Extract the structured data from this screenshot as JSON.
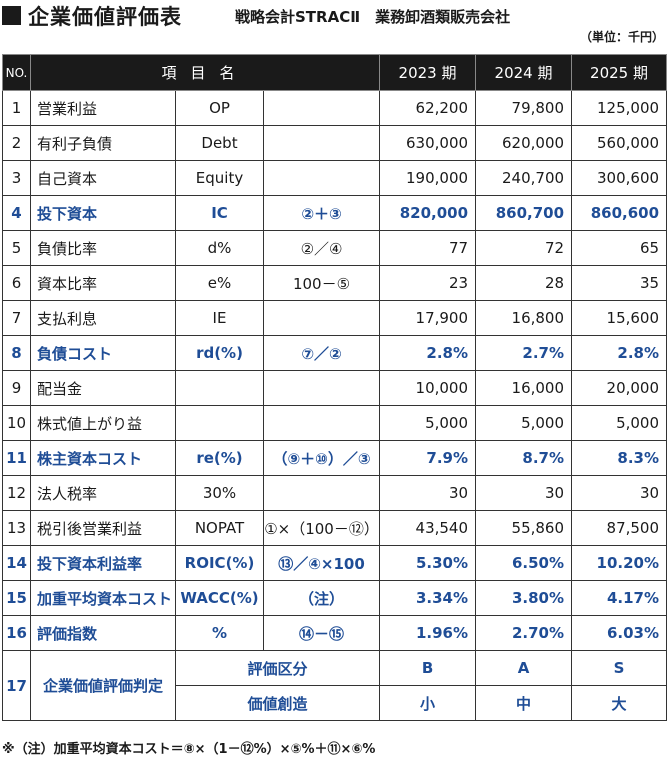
{
  "header": {
    "title": "企業価値評価表",
    "company": "戦略会計STRACⅡ　業務卸酒類販売会社",
    "unit": "（単位：千円）"
  },
  "table": {
    "headers": {
      "no": "NO.",
      "item": "項目名",
      "years": [
        "2023 期",
        "2024 期",
        "2025 期"
      ]
    },
    "rows": [
      {
        "no": "1",
        "name": "営業利益",
        "abbr": "OP",
        "calc": "",
        "v": [
          "62,200",
          "79,800",
          "125,000"
        ],
        "hl": false
      },
      {
        "no": "2",
        "name": "有利子負債",
        "abbr": "Debt",
        "calc": "",
        "v": [
          "630,000",
          "620,000",
          "560,000"
        ],
        "hl": false
      },
      {
        "no": "3",
        "name": "自己資本",
        "abbr": "Equity",
        "calc": "",
        "v": [
          "190,000",
          "240,700",
          "300,600"
        ],
        "hl": false
      },
      {
        "no": "4",
        "name": "投下資本",
        "abbr": "IC",
        "calc": "②＋③",
        "v": [
          "820,000",
          "860,700",
          "860,600"
        ],
        "hl": true
      },
      {
        "no": "5",
        "name": "負債比率",
        "abbr": "d%",
        "calc": "②／④",
        "v": [
          "77",
          "72",
          "65"
        ],
        "hl": false
      },
      {
        "no": "6",
        "name": "資本比率",
        "abbr": "e%",
        "calc": "100－⑤",
        "v": [
          "23",
          "28",
          "35"
        ],
        "hl": false
      },
      {
        "no": "7",
        "name": "支払利息",
        "abbr": "IE",
        "calc": "",
        "v": [
          "17,900",
          "16,800",
          "15,600"
        ],
        "hl": false
      },
      {
        "no": "8",
        "name": "負債コスト",
        "abbr": "rd(%)",
        "calc": "⑦／②",
        "v": [
          "2.8%",
          "2.7%",
          "2.8%"
        ],
        "hl": true
      },
      {
        "no": "9",
        "name": "配当金",
        "abbr": "",
        "calc": "",
        "v": [
          "10,000",
          "16,000",
          "20,000"
        ],
        "hl": false
      },
      {
        "no": "10",
        "name": "株式値上がり益",
        "abbr": "",
        "calc": "",
        "v": [
          "5,000",
          "5,000",
          "5,000"
        ],
        "hl": false
      },
      {
        "no": "11",
        "name": "株主資本コスト",
        "abbr": "re(%)",
        "calc": "（⑨＋⑩）／③",
        "v": [
          "7.9%",
          "8.7%",
          "8.3%"
        ],
        "hl": true
      },
      {
        "no": "12",
        "name": "法人税率",
        "abbr": "30%",
        "calc": "",
        "v": [
          "30",
          "30",
          "30"
        ],
        "hl": false
      },
      {
        "no": "13",
        "name": "税引後営業利益",
        "abbr": "NOPAT",
        "calc": "①×（100－⑫）",
        "v": [
          "43,540",
          "55,860",
          "87,500"
        ],
        "hl": false
      },
      {
        "no": "14",
        "name": "投下資本利益率",
        "abbr": "ROIC(%)",
        "calc": "⑬／④×100",
        "v": [
          "5.30%",
          "6.50%",
          "10.20%"
        ],
        "hl": true
      },
      {
        "no": "15",
        "name": "加重平均資本コスト",
        "abbr": "WACC(%)",
        "calc": "（注）",
        "v": [
          "3.34%",
          "3.80%",
          "4.17%"
        ],
        "hl": true
      },
      {
        "no": "16",
        "name": "評価指数",
        "abbr": "%",
        "calc": "⑭－⑮",
        "v": [
          "1.96%",
          "2.70%",
          "6.03%"
        ],
        "hl": true
      }
    ],
    "judgement": {
      "no": "17",
      "title": "企業価値評価判定",
      "row_a": {
        "label": "評価区分",
        "v": [
          "B",
          "A",
          "S"
        ]
      },
      "row_b": {
        "label": "価値創造",
        "v": [
          "小",
          "中",
          "大"
        ]
      }
    }
  },
  "note": "※（注）加重平均資本コスト＝⑧×（1－⑫%）×⑤%＋⑪×⑥%",
  "colors": {
    "highlight": "#1f4d96",
    "header_bg": "#1a1a1a"
  }
}
